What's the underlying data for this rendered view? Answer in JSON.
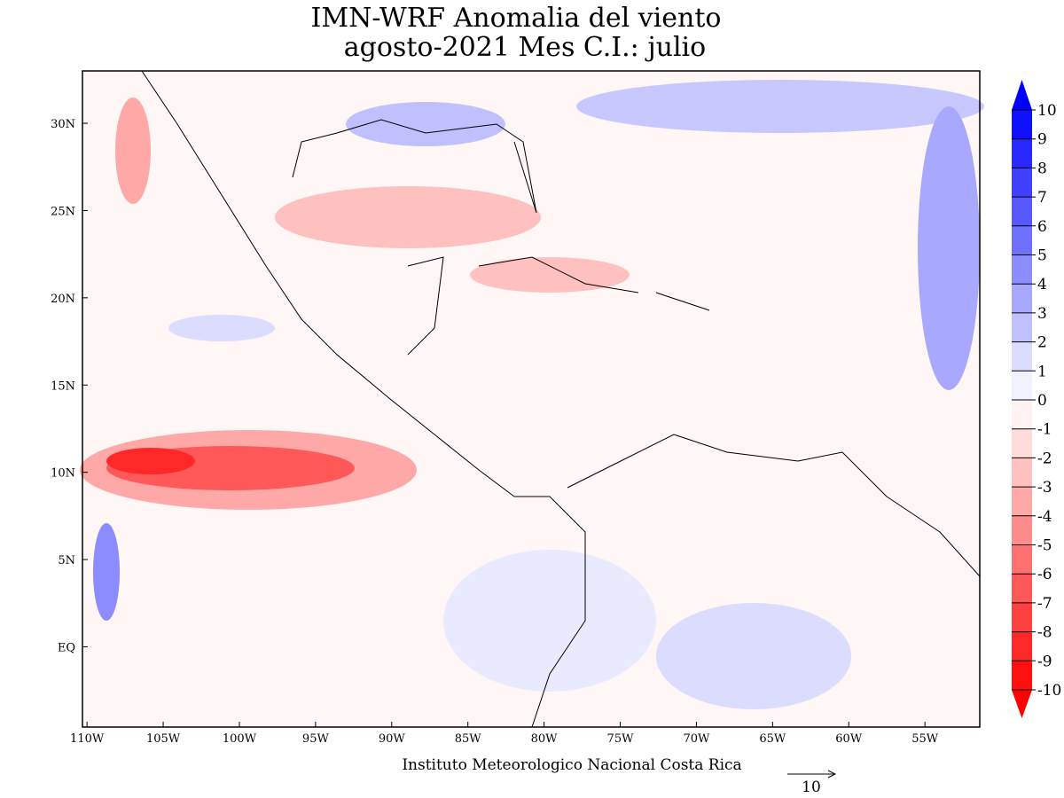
{
  "title": "IMN-WRF Anomalia del viento",
  "subtitle": "agosto-2021 Mes C.I.: julio",
  "map": {
    "xlim": [
      -110.3,
      -51.4
    ],
    "ylim": [
      -4.6,
      33
    ],
    "xticks": [
      {
        "value": -110,
        "label": "110W"
      },
      {
        "value": -105,
        "label": "105W"
      },
      {
        "value": -100,
        "label": "100W"
      },
      {
        "value": -95,
        "label": "95W"
      },
      {
        "value": -90,
        "label": "90W"
      },
      {
        "value": -85,
        "label": "85W"
      },
      {
        "value": -80,
        "label": "80W"
      },
      {
        "value": -75,
        "label": "75W"
      },
      {
        "value": -70,
        "label": "70W"
      },
      {
        "value": -65,
        "label": "65W"
      },
      {
        "value": -60,
        "label": "60W"
      },
      {
        "value": -55,
        "label": "55W"
      }
    ],
    "yticks": [
      {
        "value": 0,
        "label": "EQ"
      },
      {
        "value": 5,
        "label": "5N"
      },
      {
        "value": 10,
        "label": "10N"
      },
      {
        "value": 15,
        "label": "15N"
      },
      {
        "value": 20,
        "label": "20N"
      },
      {
        "value": 25,
        "label": "25N"
      },
      {
        "value": 30,
        "label": "30N"
      }
    ]
  },
  "colorbar": {
    "levels": [
      10,
      9,
      8,
      7,
      6,
      5,
      4,
      3,
      2,
      1,
      0,
      -1,
      -2,
      -3,
      -4,
      -5,
      -6,
      -7,
      -8,
      -9,
      -10
    ],
    "colors": [
      "#1010ff",
      "#2828ff",
      "#4040ff",
      "#5858ff",
      "#7070ff",
      "#8c8cff",
      "#a8a8ff",
      "#c0c0ff",
      "#dcdcff",
      "#f2f2ff",
      "#fff2f2",
      "#ffdcdc",
      "#ffc0c0",
      "#ffa8a8",
      "#ff8c8c",
      "#ff7070",
      "#ff5858",
      "#ff4040",
      "#ff2828",
      "#ff1010"
    ],
    "over_color": "#0000ff",
    "under_color": "#ff0000"
  },
  "footer": "Instituto Meteorologico Nacional Costa Rica",
  "reference_vector": 10
}
